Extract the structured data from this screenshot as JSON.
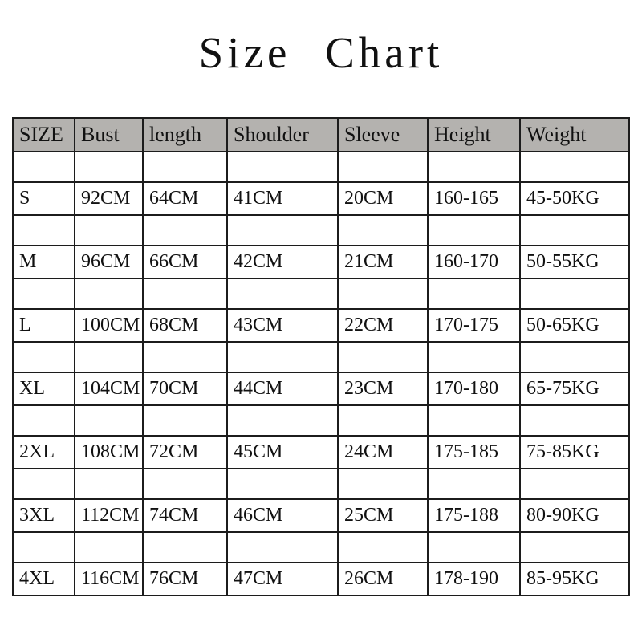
{
  "title": "Size Chart",
  "colors": {
    "header_bg": "#b4b2af",
    "border": "#1c1c1c",
    "text": "#111111",
    "page_bg": "#ffffff"
  },
  "chart_data": {
    "type": "table",
    "title": "Size Chart",
    "columns": [
      "SIZE",
      "Bust",
      "length",
      "Shoulder",
      "Sleeve",
      "Height",
      "Weight"
    ],
    "rows": [
      [
        "S",
        "92CM",
        "64CM",
        "41CM",
        "20CM",
        "160-165",
        "45-50KG"
      ],
      [
        "M",
        "96CM",
        "66CM",
        "42CM",
        "21CM",
        "160-170",
        "50-55KG"
      ],
      [
        "L",
        "100CM",
        "68CM",
        "43CM",
        "22CM",
        "170-175",
        "50-65KG"
      ],
      [
        "XL",
        "104CM",
        "70CM",
        "44CM",
        "23CM",
        "170-180",
        "65-75KG"
      ],
      [
        "2XL",
        "108CM",
        "72CM",
        "45CM",
        "24CM",
        "175-185",
        "75-85KG"
      ],
      [
        "3XL",
        "112CM",
        "74CM",
        "46CM",
        "25CM",
        "175-188",
        "80-90KG"
      ],
      [
        "4XL",
        "116CM",
        "76CM",
        "47CM",
        "26CM",
        "178-190",
        "85-95KG"
      ]
    ]
  }
}
